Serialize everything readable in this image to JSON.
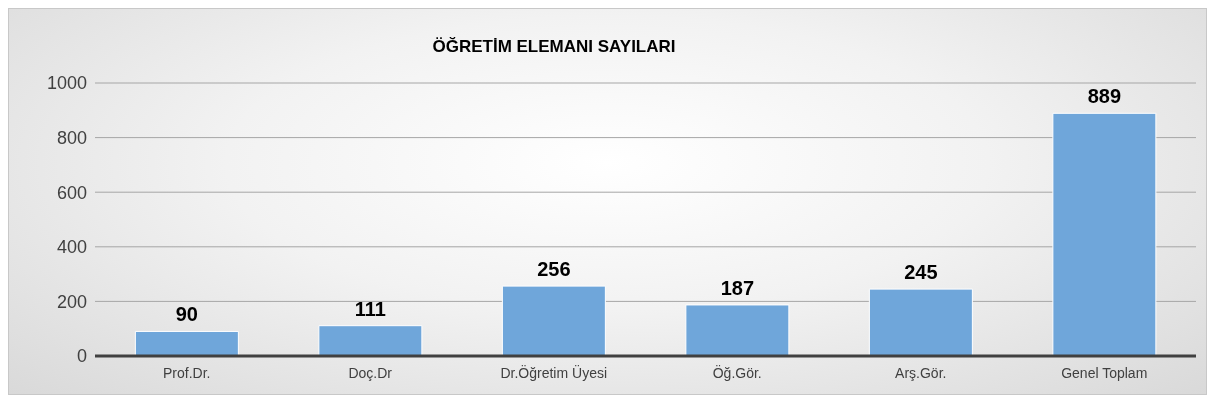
{
  "chart_data": {
    "type": "bar",
    "title": "ÖĞRETİM ELEMANI SAYILARI",
    "categories": [
      "Prof.Dr.",
      "Doç.Dr",
      "Dr.Öğretim Üyesi",
      "Öğ.Gör.",
      "Arş.Gör.",
      "Genel Toplam"
    ],
    "values": [
      90,
      111,
      256,
      187,
      245,
      889
    ],
    "color": "#6fa6da",
    "ylim": [
      0,
      1000
    ],
    "yticks": [
      0,
      200,
      400,
      600,
      800,
      1000
    ],
    "grid": "y",
    "data_labels": true
  }
}
